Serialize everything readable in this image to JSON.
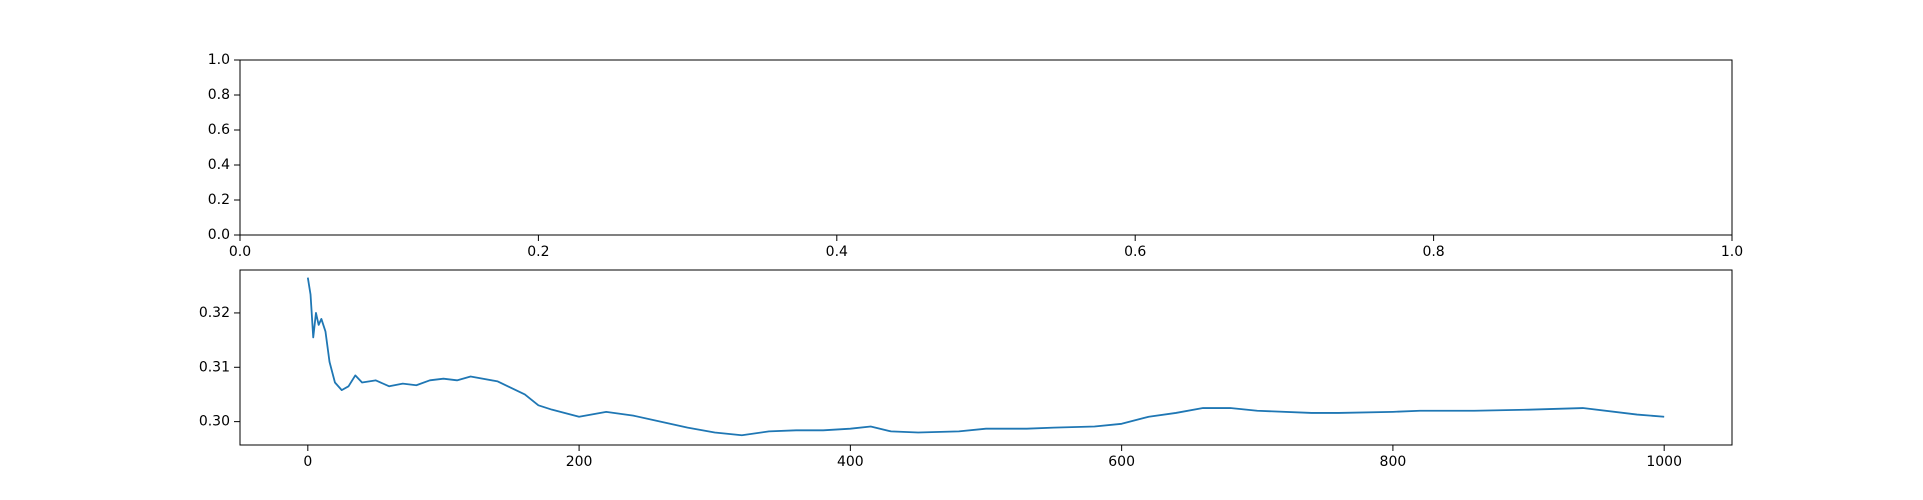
{
  "chart_data": [
    {
      "type": "line",
      "series": [],
      "xlim": [
        0,
        1
      ],
      "ylim": [
        0,
        1
      ],
      "xticks": [
        {
          "value": 0,
          "label": "0.0"
        },
        0.2,
        0.4,
        0.6,
        0.8,
        {
          "value": 1,
          "label": "1.0"
        }
      ],
      "yticks": [
        {
          "value": 0,
          "label": "0.0"
        },
        0.2,
        0.4,
        0.6,
        0.8,
        {
          "value": 1,
          "label": "1.0"
        }
      ]
    },
    {
      "type": "line",
      "x": [
        0,
        2,
        4,
        6,
        8,
        10,
        13,
        16,
        20,
        25,
        30,
        35,
        40,
        50,
        60,
        70,
        80,
        90,
        100,
        110,
        120,
        140,
        160,
        170,
        180,
        200,
        220,
        240,
        260,
        280,
        300,
        320,
        340,
        360,
        380,
        400,
        415,
        430,
        450,
        480,
        500,
        530,
        550,
        580,
        600,
        620,
        640,
        660,
        680,
        700,
        740,
        760,
        800,
        820,
        860,
        900,
        940,
        980,
        1000
      ],
      "series": [
        {
          "color": "#1f77b4",
          "values": [
            0.3265,
            0.3234,
            0.3155,
            0.32,
            0.3178,
            0.3189,
            0.3166,
            0.311,
            0.3072,
            0.3058,
            0.3065,
            0.3085,
            0.3072,
            0.3076,
            0.3065,
            0.307,
            0.3067,
            0.3076,
            0.3079,
            0.3076,
            0.3083,
            0.3074,
            0.305,
            0.303,
            0.3022,
            0.3009,
            0.3018,
            0.3011,
            0.3,
            0.2989,
            0.298,
            0.2975,
            0.2982,
            0.2984,
            0.2984,
            0.2987,
            0.2991,
            0.2982,
            0.298,
            0.2982,
            0.2987,
            0.2987,
            0.2989,
            0.2991,
            0.2996,
            0.3009,
            0.3016,
            0.3025,
            0.3025,
            0.302,
            0.3016,
            0.3016,
            0.3018,
            0.302,
            0.302,
            0.3022,
            0.3025,
            0.3013,
            0.3009
          ]
        }
      ],
      "xlim": [
        -50,
        1050
      ],
      "ylim": [
        0.2957,
        0.3279
      ],
      "xticks": [
        0,
        200,
        400,
        600,
        800,
        1000
      ],
      "yticks": [
        {
          "value": 0.3,
          "label": "0.30"
        },
        0.31,
        0.32
      ]
    }
  ]
}
